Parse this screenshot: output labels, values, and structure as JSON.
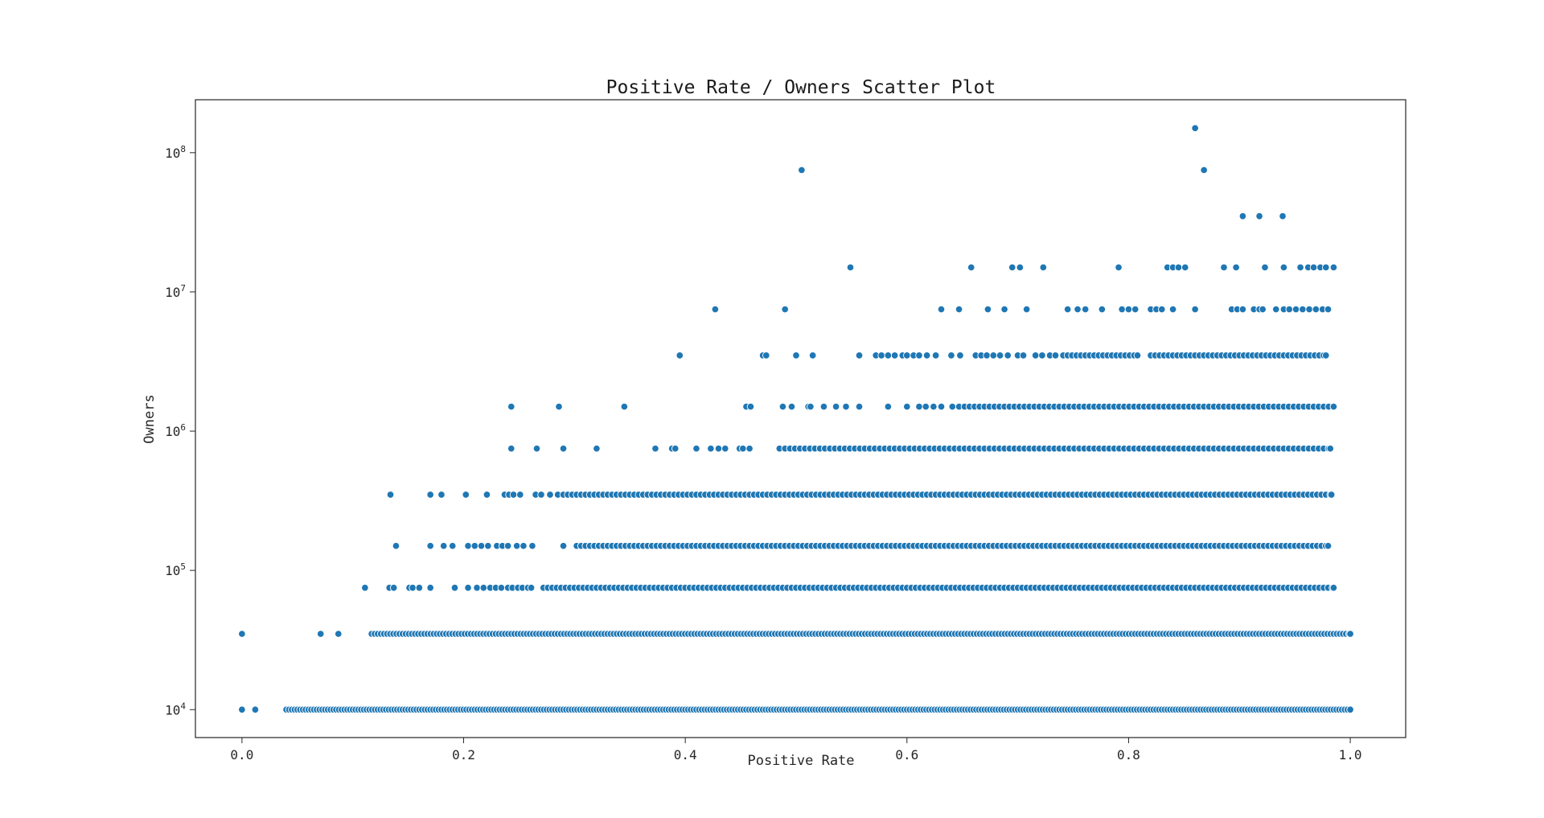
{
  "chart_data": {
    "type": "scatter",
    "title": "Positive Rate / Owners Scatter Plot",
    "xlabel": "Positive Rate",
    "ylabel": "Owners",
    "xlim": [
      -0.042,
      1.05
    ],
    "ylim": [
      6300,
      240000000
    ],
    "yscale": "log",
    "grid": false,
    "legend": "none",
    "x_ticks": [
      0.0,
      0.2,
      0.4,
      0.6,
      0.8,
      1.0
    ],
    "x_tick_labels": [
      "0.0",
      "0.2",
      "0.4",
      "0.6",
      "0.8",
      "1.0"
    ],
    "y_ticks": [
      10000,
      100000,
      1000000,
      10000000,
      100000000
    ],
    "y_tick_labels": [
      {
        "base": "10",
        "exp": "4"
      },
      {
        "base": "10",
        "exp": "5"
      },
      {
        "base": "10",
        "exp": "6"
      },
      {
        "base": "10",
        "exp": "7"
      },
      {
        "base": "10",
        "exp": "8"
      }
    ],
    "marker_color": "#1f77b4",
    "marker_edge_color": "#ffffff",
    "series": [
      {
        "y": 10000,
        "segments": [
          [
            0.0,
            0.0
          ],
          [
            0.012,
            0.012
          ],
          [
            0.04,
            1.0
          ]
        ],
        "step": 0.0025
      },
      {
        "y": 35000,
        "segments": [
          [
            0.0,
            0.0
          ],
          [
            0.071,
            0.071
          ],
          [
            0.087,
            0.087
          ],
          [
            0.117,
            1.0
          ]
        ],
        "step": 0.0028
      },
      {
        "y": 75000,
        "x": [
          0.111,
          0.133,
          0.137,
          0.151,
          0.154,
          0.16,
          0.17,
          0.192,
          0.204,
          0.212,
          0.218,
          0.224,
          0.229,
          0.234,
          0.24,
          0.244,
          0.249,
          0.253,
          0.258,
          0.261
        ],
        "segments": [
          [
            0.272,
            0.985
          ]
        ],
        "step": 0.004
      },
      {
        "y": 150000,
        "x": [
          0.139,
          0.17,
          0.182,
          0.19,
          0.204,
          0.21,
          0.216,
          0.222,
          0.23,
          0.235,
          0.24,
          0.248,
          0.254,
          0.262,
          0.29
        ],
        "segments": [
          [
            0.302,
            0.98
          ]
        ],
        "step": 0.004
      },
      {
        "y": 350000,
        "x": [
          0.134,
          0.17,
          0.18,
          0.202,
          0.221,
          0.237,
          0.241,
          0.245,
          0.251,
          0.265,
          0.27,
          0.278,
          0.285
        ],
        "segments": [
          [
            0.29,
            0.983
          ]
        ],
        "step": 0.004
      },
      {
        "y": 750000,
        "x": [
          0.243,
          0.266,
          0.29,
          0.32,
          0.373,
          0.388,
          0.391,
          0.41,
          0.423,
          0.43,
          0.436,
          0.449,
          0.452,
          0.458,
          0.485
        ],
        "segments": [
          [
            0.49,
            0.982
          ]
        ],
        "step": 0.0045
      },
      {
        "y": 1500000,
        "x": [
          0.243,
          0.286,
          0.345,
          0.455,
          0.459,
          0.488,
          0.496,
          0.511,
          0.513,
          0.525,
          0.536,
          0.545,
          0.557,
          0.583,
          0.6,
          0.611,
          0.617,
          0.624,
          0.631,
          0.641,
          0.647
        ],
        "segments": [
          [
            0.652,
            0.985
          ]
        ],
        "step": 0.0045
      },
      {
        "y": 3500000,
        "x": [
          0.395,
          0.47,
          0.473,
          0.5,
          0.515,
          0.557,
          0.572,
          0.577,
          0.583,
          0.589,
          0.596,
          0.6,
          0.606,
          0.611,
          0.618,
          0.626,
          0.64,
          0.648,
          0.662,
          0.667,
          0.672,
          0.678,
          0.684,
          0.691,
          0.7,
          0.705,
          0.716,
          0.722,
          0.729,
          0.734,
          0.741
        ],
        "segments": [
          [
            0.745,
            0.808
          ],
          [
            0.82,
            0.978
          ]
        ],
        "step": 0.004
      },
      {
        "y": 7500000,
        "x": [
          0.427,
          0.49,
          0.631,
          0.647,
          0.673,
          0.688,
          0.708,
          0.745,
          0.754,
          0.761,
          0.776,
          0.794,
          0.8,
          0.806,
          0.82,
          0.825,
          0.83,
          0.84,
          0.86,
          0.893,
          0.898,
          0.903,
          0.913,
          0.918,
          0.921,
          0.933,
          0.94,
          0.945,
          0.951,
          0.957,
          0.963,
          0.969,
          0.975,
          0.98
        ]
      },
      {
        "y": 15000000,
        "x": [
          0.549,
          0.658,
          0.695,
          0.702,
          0.723,
          0.791,
          0.835,
          0.84,
          0.845,
          0.851,
          0.886,
          0.897,
          0.923,
          0.94,
          0.955,
          0.962,
          0.967,
          0.973,
          0.978,
          0.985
        ]
      },
      {
        "y": 35000000,
        "x": [
          0.903,
          0.918,
          0.939
        ]
      },
      {
        "y": 75000000,
        "x": [
          0.505,
          0.868
        ]
      },
      {
        "y": 150000000,
        "x": [
          0.86
        ]
      }
    ]
  }
}
